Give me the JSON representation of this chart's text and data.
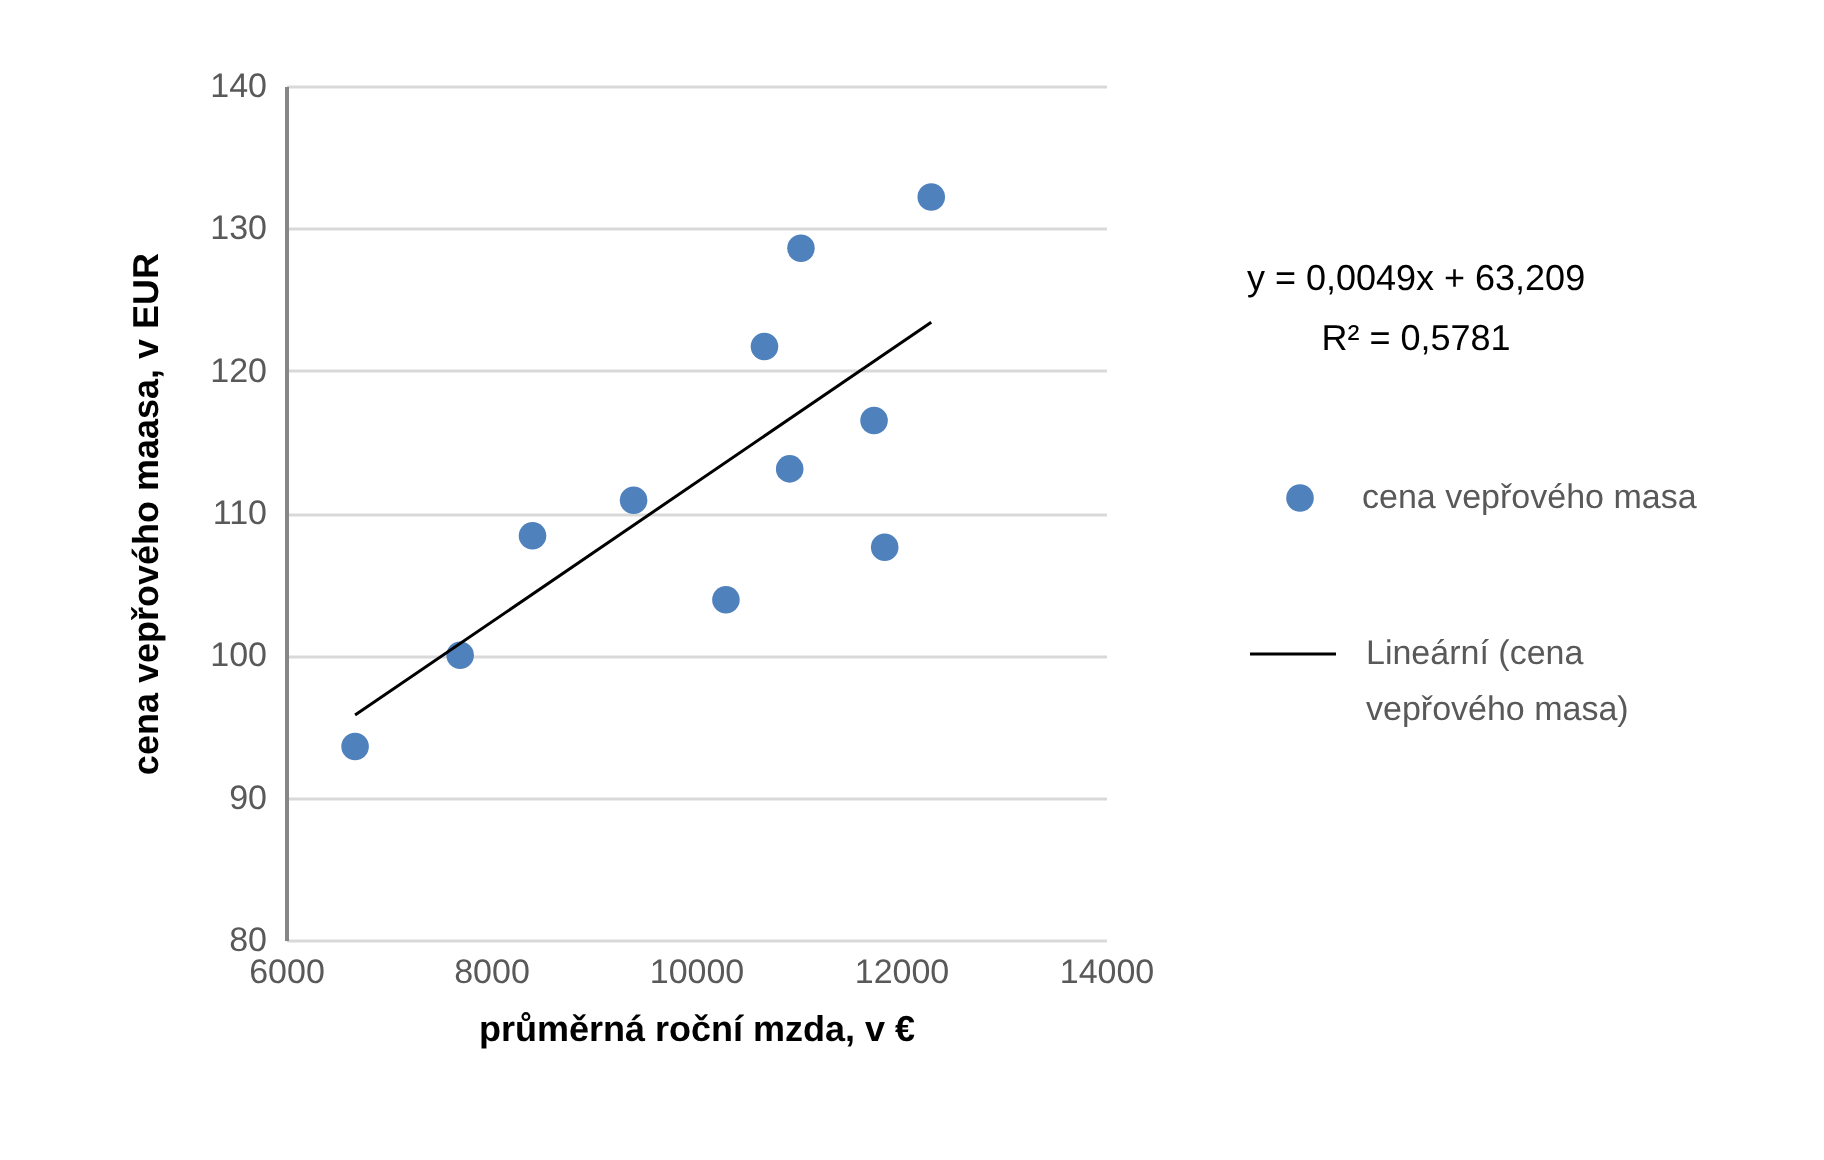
{
  "chart_data": {
    "type": "scatter",
    "xlabel": "průměrná roční mzda, v €",
    "ylabel": "cena vepřového maasa, v EUR",
    "series": [
      {
        "name": "cena vepřového masa",
        "color": "#4f81bd",
        "x": [
          6674,
          7699,
          8405,
          9391,
          10292,
          10668,
          10914,
          11024,
          11737,
          11841,
          12295
        ],
        "values": [
          93.6,
          100.0,
          108.4,
          110.9,
          103.9,
          121.7,
          113.1,
          128.6,
          116.5,
          107.6,
          132.2
        ]
      },
      {
        "name": "Lineární (cena vepřového masa)",
        "type": "line",
        "marker": "none",
        "color": "#000000",
        "x": [
          6674,
          12295
        ],
        "values": [
          95.8,
          123.4
        ]
      }
    ],
    "xlim": [
      6000,
      14000
    ],
    "xticks": [
      6000,
      8000,
      10000,
      12000,
      14000
    ],
    "ylim": [
      80,
      140
    ],
    "yticks": [
      80,
      90,
      100,
      110,
      120,
      130,
      140
    ],
    "grid": "y",
    "legend": "right",
    "marker": "circle",
    "annotations": [
      "y = 0,0049x + 63,209",
      "R² = 0,5781"
    ]
  }
}
